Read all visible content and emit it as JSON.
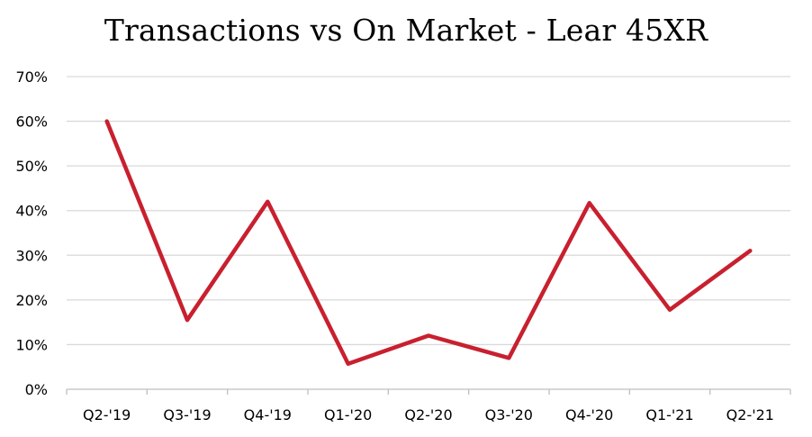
{
  "chart_data": {
    "type": "line",
    "title": "Transactions vs On Market - Lear 45XR",
    "xlabel": "",
    "ylabel": "",
    "categories": [
      "Q2-'19",
      "Q3-'19",
      "Q4-'19",
      "Q1-'20",
      "Q2-'20",
      "Q3-'20",
      "Q4-'20",
      "Q1-'21",
      "Q2-'21"
    ],
    "series": [
      {
        "values": [
          60,
          15.5,
          42,
          5.7,
          12,
          7,
          41.7,
          17.8,
          31
        ],
        "color": "#c8202f"
      }
    ],
    "ylim": [
      0,
      70
    ],
    "yticks": [
      0,
      10,
      20,
      30,
      40,
      50,
      60,
      70
    ],
    "ytick_labels": [
      "0%",
      "10%",
      "20%",
      "30%",
      "40%",
      "50%",
      "60%",
      "70%"
    ],
    "grid": true,
    "legend": "none"
  }
}
